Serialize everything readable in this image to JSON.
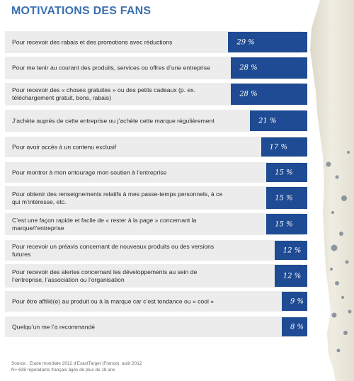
{
  "title": "MOTIVATIONS DES FANS",
  "source_line1": "Source : Etude mondiale 2012 d’ExactTarget (France), août 2012",
  "source_line2": "N= 638 répondants français âgés de plus de 18 ans",
  "colors": {
    "bar": "#1e4b93",
    "row_bg": "#ececec",
    "title": "#3b6fb0"
  },
  "chart_data": {
    "type": "bar",
    "orientation": "horizontal",
    "title": "MOTIVATIONS DES FANS",
    "categories": [
      "Pour recevoir des rabais et des promotions avec réductions",
      "Pour me tenir au courant des produits, services ou offres d’une entreprise",
      "Pour recevoir des « choses gratuites » ou des petits cadeaux (p. ex. téléchargement gratuit, bons, rabais)",
      "J’achète auprès de cette entreprise ou j’achète cette marque régulièrement",
      "Pour avoir accès à un contenu exclusif",
      "Pour montrer à mon entourage mon soutien à l’entreprise",
      "Pour obtenir des renseignements relatifs à mes passe-temps personnels, à ce qui m’intéresse, etc.",
      "C’est une façon rapide et facile de « rester à la page » concernant la marque/l’entreprise",
      "Pour recevoir un préavis concernant de nouveaux produits ou des versions futures",
      "Pour recevoir des alertes concernant les développements au sein de l’entreprise, l’association ou l’organisation",
      "Pour être affilié(e) au produit ou à la marque car c’est tendance ou « cool »",
      "Quelqu’un me l’a recommandé"
    ],
    "values": [
      29,
      28,
      28,
      21,
      17,
      15,
      15,
      15,
      12,
      12,
      9,
      8
    ],
    "value_labels": [
      "29 %",
      "28 %",
      "28 %",
      "21 %",
      "17 %",
      "15 %",
      "15 %",
      "15 %",
      "12 %",
      "12 %",
      "9 %",
      "8 %"
    ],
    "unit": "%"
  }
}
